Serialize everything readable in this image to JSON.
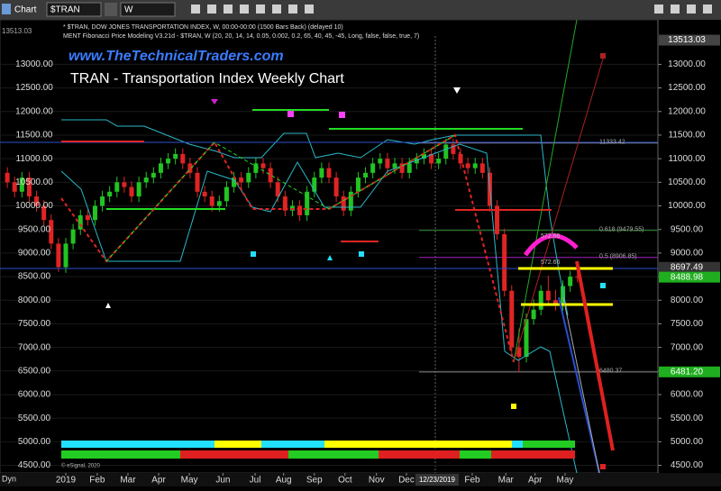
{
  "toolbar": {
    "window": "Chart",
    "symbol": "$TRAN",
    "interval": "W"
  },
  "header": {
    "line1": "* $TRAN, DOW JONES TRANSPORTATION INDEX, W, 00:00-00:00 (1500 Bars Back) (delayed 10)",
    "line2": "MENT Fibonacci Price Modeling V3.21d - $TRAN, W (20, 20, 14, 14, 0.05, 0.002, 0.2, 65, 40, 45, -45, Long, false, false, true, 7)"
  },
  "footer": {
    "copyright": "© eSignal, 2020",
    "mode": "Dyn",
    "cursor_date": "12/23/2019"
  },
  "chart_data": {
    "type": "candlestick",
    "title": "TRAN - Transportation Index Weekly Chart",
    "subtitle": "www.TheTechnicalTraders.com",
    "up_color": "#22c422",
    "down_color": "#e02424",
    "open": [
      10700,
      10500,
      10300,
      10600,
      10200,
      10000,
      9700,
      9200,
      8700,
      9200,
      9500,
      9800,
      9700,
      10000,
      10200,
      10300,
      10500,
      10400,
      10200,
      10500,
      10600,
      10700,
      10900,
      11000,
      11100,
      10900,
      10700,
      10300,
      10200,
      10000,
      10100,
      10400,
      10600,
      10500,
      10700,
      10900,
      10800,
      10500,
      10200,
      9900,
      10000,
      9800,
      10300,
      10600,
      10800,
      10600,
      10200,
      9900,
      10300,
      10600,
      10700,
      10900,
      11000,
      10800,
      10900,
      10700,
      10900,
      11000,
      11100,
      10900,
      11000,
      11300,
      11100,
      10900,
      10800,
      10900,
      10700,
      10000,
      9400,
      8200,
      7000,
      6800,
      7600,
      7800,
      8200,
      8000,
      7900,
      8300,
      8500
    ],
    "high": [
      10820,
      10620,
      10720,
      10720,
      10320,
      10120,
      9820,
      9320,
      9320,
      9620,
      9920,
      9920,
      10120,
      10320,
      10420,
      10620,
      10620,
      10520,
      10620,
      10720,
      10820,
      11020,
      11120,
      11220,
      11220,
      11020,
      10820,
      10420,
      10320,
      10220,
      10520,
      10720,
      10720,
      10820,
      11020,
      11020,
      10920,
      10620,
      10320,
      10120,
      10120,
      10420,
      10720,
      10920,
      10920,
      10720,
      10320,
      10420,
      10720,
      10820,
      11020,
      11120,
      11120,
      11020,
      11020,
      11020,
      11120,
      11220,
      11220,
      11120,
      11420,
      11420,
      11220,
      11020,
      11020,
      11020,
      10820,
      10120,
      9520,
      8320,
      7400,
      7720,
      8020,
      8320,
      8520,
      8220,
      8420,
      8620,
      8620
    ],
    "low": [
      10380,
      10180,
      10180,
      10080,
      9880,
      9580,
      9080,
      8600,
      8580,
      9080,
      9380,
      9580,
      9580,
      9880,
      10080,
      10180,
      10280,
      10080,
      10080,
      10380,
      10480,
      10580,
      10780,
      10880,
      10780,
      10580,
      10180,
      10080,
      9880,
      9880,
      9980,
      10280,
      10380,
      10380,
      10580,
      10680,
      10380,
      10080,
      9780,
      9780,
      9680,
      9680,
      10180,
      10480,
      10480,
      10080,
      9780,
      9780,
      10180,
      10480,
      10580,
      10780,
      10680,
      10680,
      10580,
      10580,
      10780,
      10880,
      10780,
      10780,
      10880,
      10980,
      10780,
      10680,
      10680,
      10580,
      9880,
      9280,
      8080,
      6880,
      6480,
      6680,
      7480,
      7680,
      7880,
      7780,
      7780,
      8180,
      8380
    ],
    "close": [
      10500,
      10300,
      10600,
      10200,
      10000,
      9700,
      9200,
      8700,
      9200,
      9500,
      9800,
      9700,
      10000,
      10200,
      10300,
      10500,
      10400,
      10200,
      10500,
      10600,
      10700,
      10900,
      11000,
      11100,
      10900,
      10700,
      10300,
      10200,
      10000,
      10100,
      10400,
      10600,
      10500,
      10700,
      10900,
      10800,
      10500,
      10200,
      9900,
      10000,
      9800,
      10300,
      10600,
      10800,
      10600,
      10200,
      9900,
      10300,
      10600,
      10700,
      10900,
      11000,
      10800,
      10900,
      10700,
      10900,
      11000,
      11100,
      10900,
      11000,
      11300,
      11100,
      10900,
      10800,
      10900,
      10700,
      10000,
      9400,
      8200,
      7000,
      6800,
      7600,
      7800,
      8200,
      8000,
      7900,
      8300,
      8500,
      8489
    ],
    "ylim": [
      4300,
      13600
    ],
    "yticks": [
      {
        "value": 4500,
        "label": "4500.00"
      },
      {
        "value": 5000,
        "label": "5000.00"
      },
      {
        "value": 5500,
        "label": "5500.00"
      },
      {
        "value": 6000,
        "label": "6000.00"
      },
      {
        "value": 6500,
        "label": "6500.00"
      },
      {
        "value": 7000,
        "label": "7000.00"
      },
      {
        "value": 7500,
        "label": "7500.00"
      },
      {
        "value": 8000,
        "label": "8000.00"
      },
      {
        "value": 8500,
        "label": "8500.00"
      },
      {
        "value": 9000,
        "label": "9000.00"
      },
      {
        "value": 9500,
        "label": "9500.00"
      },
      {
        "value": 10000,
        "label": "10000.00"
      },
      {
        "value": 10500,
        "label": "10500.00"
      },
      {
        "value": 11000,
        "label": "11000.00"
      },
      {
        "value": 11500,
        "label": "11500.00"
      },
      {
        "value": 12000,
        "label": "12000.00"
      },
      {
        "value": 12500,
        "label": "12500.00"
      },
      {
        "value": 13000,
        "label": "13000.00"
      }
    ],
    "xlim": [
      -1,
      89
    ],
    "xticks": [
      {
        "value": 8,
        "label": "2019"
      },
      {
        "value": 12.3,
        "label": "Feb"
      },
      {
        "value": 16.5,
        "label": "Mar"
      },
      {
        "value": 20.7,
        "label": "Apr"
      },
      {
        "value": 24.9,
        "label": "May"
      },
      {
        "value": 29.5,
        "label": "Jun"
      },
      {
        "value": 33.9,
        "label": "Jul"
      },
      {
        "value": 37.8,
        "label": "Aug"
      },
      {
        "value": 42,
        "label": "Sep"
      },
      {
        "value": 46.2,
        "label": "Oct"
      },
      {
        "value": 50.5,
        "label": "Nov"
      },
      {
        "value": 54.6,
        "label": "Dec"
      },
      {
        "value": 63.6,
        "label": "Feb"
      },
      {
        "value": 68.2,
        "label": "Mar"
      },
      {
        "value": 72.2,
        "label": "Apr"
      },
      {
        "value": 76.3,
        "label": "May"
      }
    ],
    "levels": [
      {
        "value": 11333.42,
        "label": "11333.42",
        "color": "#888888"
      },
      {
        "value": 9479.55,
        "label": "0.618 (9479.55)",
        "color": "#2e8b2e"
      },
      {
        "value": 8906.85,
        "label": "0.5 (8906.85)",
        "color": "#a020c0"
      },
      {
        "value": 6480.37,
        "label": "6480.37",
        "color": "#888888"
      }
    ],
    "price_tags": [
      {
        "value": 13513.03,
        "label": "13513.03",
        "color": "#444444"
      },
      {
        "value": 8697.49,
        "label": "8697.49",
        "color": "#333333"
      },
      {
        "value": 8488.98,
        "label": "8488.98",
        "color": "#1fae1f"
      },
      {
        "value": 6481.2,
        "label": "6481.20",
        "color": "#1fae1f"
      }
    ],
    "annotations": [
      "572.66",
      "572.66"
    ]
  }
}
